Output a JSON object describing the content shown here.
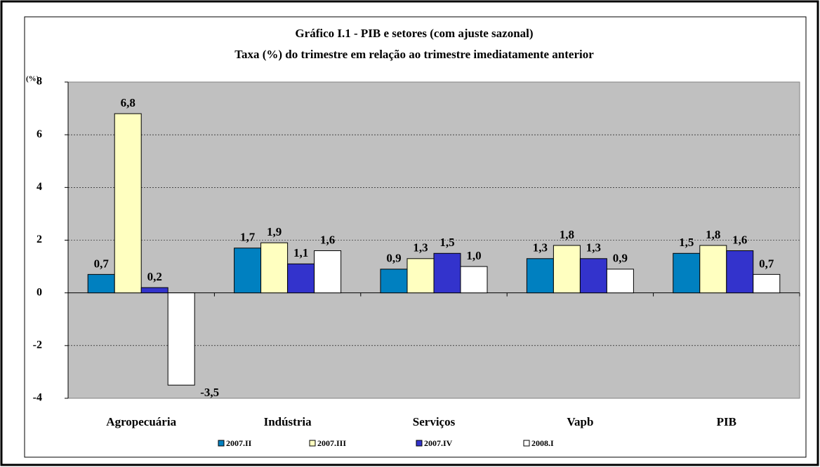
{
  "chart_data": {
    "type": "bar",
    "title": "Gráfico I.1 - PIB  e setores (com ajuste sazonal)",
    "subtitle": "Taxa (%) do trimestre em relação ao trimestre imediatamente anterior",
    "y_label": "(%)",
    "categories": [
      "Agropecuária",
      "Indústria",
      "Serviços",
      "Vapb",
      "PIB"
    ],
    "series": [
      {
        "name": "2007.II",
        "color": "#0080c0",
        "values": [
          0.7,
          1.7,
          0.9,
          1.3,
          1.5
        ],
        "value_labels": [
          "0,7",
          "1,7",
          "0,9",
          "1,3",
          "1,5"
        ]
      },
      {
        "name": "2007.III",
        "color": "#ffffc0",
        "values": [
          6.8,
          1.9,
          1.3,
          1.8,
          1.8
        ],
        "value_labels": [
          "6,8",
          "1,9",
          "1,3",
          "1,8",
          "1,8"
        ]
      },
      {
        "name": "2007.IV",
        "color": "#3333cc",
        "values": [
          0.2,
          1.1,
          1.5,
          1.3,
          1.6
        ],
        "value_labels": [
          "0,2",
          "1,1",
          "1,5",
          "1,3",
          "1,6"
        ]
      },
      {
        "name": "2008.I",
        "color": "#ffffff",
        "values": [
          -3.5,
          1.6,
          1.0,
          0.9,
          0.7
        ],
        "value_labels": [
          "-3,5",
          "1,6",
          "1,0",
          "0,9",
          "0,7"
        ]
      }
    ],
    "ylim": [
      -4,
      8
    ],
    "yticks": [
      -4,
      -2,
      0,
      2,
      4,
      6,
      8
    ],
    "grid": true,
    "legend": "bottom"
  }
}
